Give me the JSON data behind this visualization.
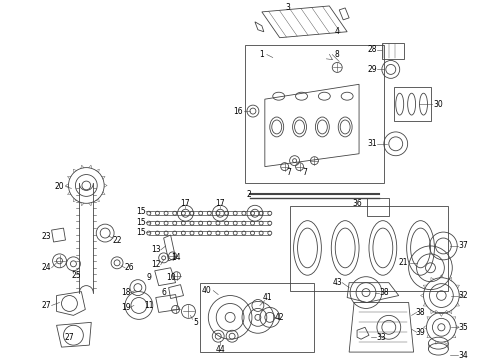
{
  "bg_color": "#ffffff",
  "lc": "#444444",
  "lw": 0.6,
  "fig_width": 4.9,
  "fig_height": 3.6,
  "dpi": 100
}
